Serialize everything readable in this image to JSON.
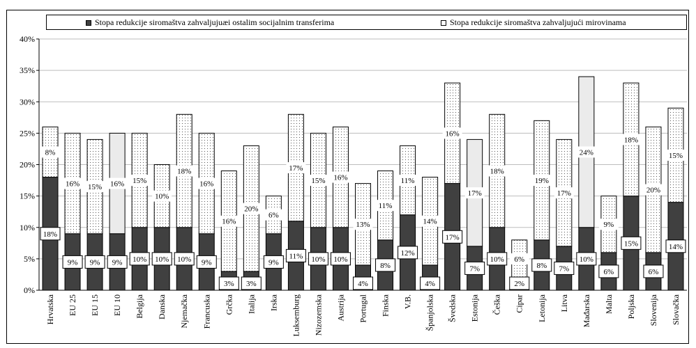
{
  "chart_data": {
    "type": "bar",
    "stacked": true,
    "categories": [
      "Hrvatska",
      "EU 25",
      "EU 15",
      "EU 10",
      "Belgija",
      "Danska",
      "Njemačka",
      "Francuska",
      "Grčka",
      "Italija",
      "Irska",
      "Luksemburg",
      "Nizozemska",
      "Austrija",
      "Portugal",
      "Finska",
      "V.B.",
      "Španjolska",
      "Švedska",
      "Estonija",
      "Češka",
      "Cipar",
      "Letonija",
      "Litva",
      "Mađarska",
      "Malta",
      "Poljska",
      "Slovenija",
      "Slovačka"
    ],
    "series": [
      {
        "name": "Stopa redukcije siromaštva zahvaljujuæi ostalim socijalnim transferima",
        "color": "#404040",
        "values": [
          18,
          9,
          9,
          9,
          10,
          10,
          10,
          9,
          3,
          3,
          9,
          11,
          10,
          10,
          4,
          8,
          12,
          4,
          17,
          7,
          10,
          2,
          8,
          7,
          10,
          6,
          15,
          6,
          14
        ],
        "labels": [
          "18%",
          "9%",
          "9%",
          "9%",
          "10%",
          "10%",
          "10%",
          "9%",
          "3%",
          "3%",
          "9%",
          "11%",
          "10%",
          "10%",
          "4%",
          "8%",
          "12%",
          "4%",
          "17%",
          "7%",
          "10%",
          "2%",
          "8%",
          "7%",
          "10%",
          "6%",
          "15%",
          "6%",
          "14%"
        ]
      },
      {
        "name": "Stopa redukcije siromaštva zahvaljujući  mirovinama",
        "color": "#ffffff",
        "values": [
          8,
          16,
          15,
          16,
          15,
          10,
          18,
          16,
          16,
          20,
          6,
          17,
          15,
          16,
          13,
          11,
          11,
          14,
          16,
          17,
          18,
          6,
          19,
          17,
          24,
          9,
          18,
          20,
          15
        ],
        "labels": [
          "8%",
          "16%",
          "15%",
          "16%",
          "15%",
          "10%",
          "18%",
          "16%",
          "16%",
          "20%",
          "6%",
          "17%",
          "15%",
          "16%",
          "13%",
          "11%",
          "11%",
          "14%",
          "16%",
          "17%",
          "18%",
          "6%",
          "19%",
          "17%",
          "24%",
          "9%",
          "18%",
          "20%",
          "15%"
        ]
      }
    ],
    "ylim": [
      0,
      40
    ],
    "yticks": [
      0,
      5,
      10,
      15,
      20,
      25,
      30,
      35,
      40
    ],
    "ytick_labels": [
      "0%",
      "5%",
      "10%",
      "15%",
      "20%",
      "25%",
      "30%",
      "35%",
      "40%"
    ],
    "grid": true,
    "legend": "top",
    "title": "",
    "xlabel": "",
    "ylabel": ""
  }
}
